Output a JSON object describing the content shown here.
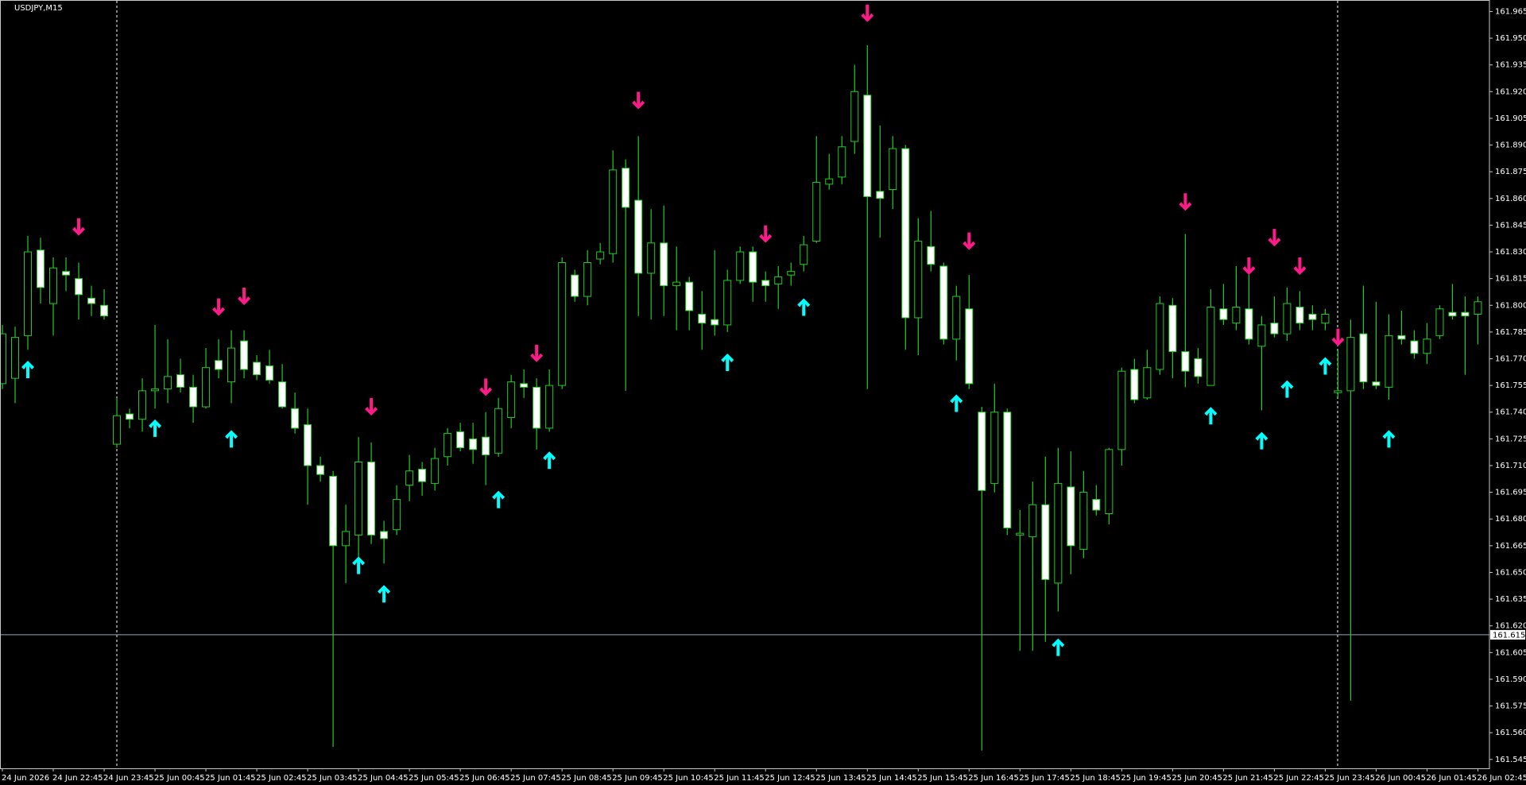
{
  "chart_data": {
    "type": "candlestick",
    "title": "USDJPY,M15",
    "categories": [
      "24 Jun 2026",
      null,
      null,
      null,
      "24 Jun 22:45",
      null,
      null,
      null,
      "24 Jun 23:45",
      null,
      null,
      null,
      "25 Jun 00:45",
      null,
      null,
      null,
      "25 Jun 01:45",
      null,
      null,
      null,
      "25 Jun 02:45",
      null,
      null,
      null,
      "25 Jun 03:45",
      null,
      null,
      null,
      "25 Jun 04:45",
      null,
      null,
      null,
      "25 Jun 05:45",
      null,
      null,
      null,
      "25 Jun 06:45",
      null,
      null,
      null,
      "25 Jun 07:45",
      null,
      null,
      null,
      "25 Jun 08:45",
      null,
      null,
      null,
      "25 Jun 09:45",
      null,
      null,
      null,
      "25 Jun 10:45",
      null,
      null,
      null,
      "25 Jun 11:45",
      null,
      null,
      null,
      "25 Jun 12:45",
      null,
      null,
      null,
      "25 Jun 13:45",
      null,
      null,
      null,
      "25 Jun 14:45",
      null,
      null,
      null,
      "25 Jun 15:45",
      null,
      null,
      null,
      "25 Jun 16:45",
      null,
      null,
      null,
      "25 Jun 17:45",
      null,
      null,
      null,
      "25 Jun 18:45",
      null,
      null,
      null,
      "25 Jun 19:45",
      null,
      null,
      null,
      "25 Jun 20:45",
      null,
      null,
      null,
      "25 Jun 21:45",
      null,
      null,
      null,
      "25 Jun 22:45",
      null,
      null,
      null,
      "25 Jun 23:45",
      null,
      null,
      null,
      "26 Jun 00:45",
      null,
      null,
      null,
      "26 Jun 01:45",
      null,
      null,
      null,
      "26 Jun 02:45"
    ],
    "open": [
      161.756,
      161.759,
      161.783,
      161.831,
      161.801,
      161.819,
      161.815,
      161.804,
      161.8,
      161.722,
      161.739,
      161.736,
      161.752,
      161.753,
      161.761,
      161.754,
      161.743,
      161.769,
      161.757,
      161.78,
      161.768,
      161.766,
      161.757,
      161.742,
      161.733,
      161.71,
      161.704,
      161.665,
      161.671,
      161.712,
      161.673,
      161.674,
      161.699,
      161.708,
      161.7,
      161.715,
      161.729,
      161.725,
      161.726,
      161.717,
      161.737,
      161.756,
      161.754,
      161.731,
      161.755,
      161.817,
      161.805,
      161.826,
      161.829,
      161.877,
      161.859,
      161.818,
      161.835,
      161.811,
      161.813,
      161.795,
      161.792,
      161.789,
      161.814,
      161.83,
      161.814,
      161.812,
      161.817,
      161.823,
      161.836,
      161.868,
      161.872,
      161.892,
      161.918,
      161.864,
      161.865,
      161.888,
      161.793,
      161.833,
      161.822,
      161.781,
      161.798,
      161.74,
      161.7,
      161.74,
      161.671,
      161.67,
      161.688,
      161.644,
      161.698,
      161.663,
      161.691,
      161.683,
      161.719,
      161.764,
      161.748,
      161.764,
      161.8,
      161.774,
      161.77,
      161.755,
      161.798,
      161.79,
      161.798,
      161.777,
      161.79,
      161.784,
      161.799,
      161.795,
      161.79,
      161.751,
      161.752,
      161.784,
      161.757,
      161.754,
      161.783,
      161.78,
      161.773,
      161.783,
      161.796,
      161.796,
      161.795
    ],
    "high": [
      161.789,
      161.788,
      161.839,
      161.838,
      161.827,
      161.827,
      161.824,
      161.811,
      161.809,
      161.748,
      161.742,
      161.759,
      161.789,
      161.781,
      161.77,
      161.761,
      161.776,
      161.781,
      161.786,
      161.786,
      161.772,
      161.775,
      161.767,
      161.751,
      161.742,
      161.715,
      161.707,
      161.688,
      161.726,
      161.723,
      161.679,
      161.699,
      161.716,
      161.712,
      161.72,
      161.731,
      161.734,
      161.734,
      161.74,
      161.748,
      161.761,
      161.764,
      161.759,
      161.764,
      161.827,
      161.82,
      161.831,
      161.835,
      161.887,
      161.882,
      161.895,
      161.854,
      161.856,
      161.833,
      161.816,
      161.808,
      161.831,
      161.82,
      161.833,
      161.833,
      161.819,
      161.822,
      161.824,
      161.839,
      161.895,
      161.885,
      161.895,
      161.935,
      161.946,
      161.901,
      161.895,
      161.89,
      161.849,
      161.853,
      161.824,
      161.811,
      161.817,
      161.743,
      161.756,
      161.742,
      161.685,
      161.701,
      161.715,
      161.72,
      161.718,
      161.707,
      161.699,
      161.72,
      161.765,
      161.77,
      161.775,
      161.805,
      161.804,
      161.84,
      161.776,
      161.809,
      161.812,
      161.822,
      161.819,
      161.794,
      161.805,
      161.81,
      161.808,
      161.8,
      161.798,
      161.775,
      161.792,
      161.811,
      161.802,
      161.795,
      161.797,
      161.786,
      161.79,
      161.8,
      161.812,
      161.805,
      161.805
    ],
    "low": [
      161.753,
      161.745,
      161.775,
      161.801,
      161.783,
      161.808,
      161.792,
      161.794,
      161.792,
      161.72,
      161.731,
      161.729,
      161.742,
      161.745,
      161.751,
      161.734,
      161.742,
      161.759,
      161.745,
      161.759,
      161.758,
      161.756,
      161.742,
      161.728,
      161.688,
      161.701,
      161.552,
      161.644,
      161.655,
      161.666,
      161.655,
      161.671,
      161.69,
      161.693,
      161.696,
      161.71,
      161.718,
      161.711,
      161.699,
      161.715,
      161.731,
      161.748,
      161.719,
      161.729,
      161.753,
      161.802,
      161.8,
      161.823,
      161.824,
      161.752,
      161.794,
      161.792,
      161.794,
      161.786,
      161.786,
      161.775,
      161.783,
      161.785,
      161.812,
      161.802,
      161.802,
      161.798,
      161.811,
      161.819,
      161.835,
      161.865,
      161.868,
      161.885,
      161.753,
      161.838,
      161.854,
      161.775,
      161.772,
      161.819,
      161.778,
      161.769,
      161.753,
      161.55,
      161.695,
      161.671,
      161.606,
      161.606,
      161.611,
      161.628,
      161.649,
      161.658,
      161.682,
      161.677,
      161.71,
      161.745,
      161.747,
      161.761,
      161.759,
      161.754,
      161.756,
      161.755,
      161.789,
      161.786,
      161.778,
      161.741,
      161.782,
      161.78,
      161.786,
      161.786,
      161.786,
      161.748,
      161.578,
      161.753,
      161.753,
      161.747,
      161.778,
      161.77,
      161.767,
      161.781,
      161.792,
      161.761,
      161.778
    ],
    "close": [
      161.784,
      161.782,
      161.83,
      161.81,
      161.821,
      161.817,
      161.806,
      161.801,
      161.794,
      161.738,
      161.736,
      161.752,
      161.753,
      161.76,
      161.754,
      161.743,
      161.765,
      161.764,
      161.776,
      161.764,
      161.761,
      161.758,
      161.743,
      161.731,
      161.71,
      161.705,
      161.665,
      161.673,
      161.712,
      161.671,
      161.669,
      161.691,
      161.707,
      161.701,
      161.714,
      161.728,
      161.72,
      161.719,
      161.716,
      161.742,
      161.757,
      161.754,
      161.731,
      161.755,
      161.824,
      161.805,
      161.824,
      161.83,
      161.876,
      161.855,
      161.818,
      161.835,
      161.811,
      161.813,
      161.797,
      161.79,
      161.789,
      161.814,
      161.83,
      161.813,
      161.811,
      161.816,
      161.819,
      161.834,
      161.869,
      161.871,
      161.889,
      161.92,
      161.861,
      161.86,
      161.888,
      161.793,
      161.836,
      161.823,
      161.781,
      161.805,
      161.756,
      161.696,
      161.74,
      161.675,
      161.672,
      161.688,
      161.646,
      161.7,
      161.665,
      161.695,
      161.685,
      161.719,
      161.763,
      161.747,
      161.765,
      161.801,
      161.774,
      161.763,
      161.76,
      161.799,
      161.792,
      161.799,
      161.781,
      161.789,
      161.784,
      161.801,
      161.79,
      161.792,
      161.795,
      161.752,
      161.782,
      161.757,
      161.755,
      161.783,
      161.781,
      161.773,
      161.781,
      161.798,
      161.794,
      161.794,
      161.802
    ],
    "down_arrows": {
      "color": "#ff1a8c",
      "values": [
        null,
        null,
        null,
        null,
        null,
        null,
        161.844,
        null,
        null,
        null,
        null,
        null,
        null,
        null,
        null,
        null,
        null,
        161.799,
        null,
        161.805,
        null,
        null,
        null,
        null,
        null,
        null,
        null,
        null,
        null,
        161.743,
        null,
        null,
        null,
        null,
        null,
        null,
        null,
        null,
        161.754,
        null,
        null,
        null,
        161.773,
        null,
        null,
        null,
        null,
        null,
        null,
        null,
        161.915,
        null,
        null,
        null,
        null,
        null,
        null,
        null,
        null,
        null,
        161.84,
        null,
        null,
        null,
        null,
        null,
        null,
        null,
        161.964,
        null,
        null,
        null,
        null,
        null,
        null,
        null,
        161.836,
        null,
        null,
        null,
        null,
        null,
        null,
        null,
        null,
        null,
        null,
        null,
        null,
        null,
        null,
        null,
        null,
        161.858,
        null,
        null,
        null,
        null,
        161.822,
        null,
        161.838,
        null,
        161.822,
        null,
        null,
        161.782,
        null,
        null,
        null,
        null,
        null,
        null,
        null,
        null,
        null,
        null,
        null
      ]
    },
    "up_arrows": {
      "color": "#00ffff",
      "values": [
        null,
        null,
        161.764,
        null,
        null,
        null,
        null,
        null,
        null,
        null,
        null,
        null,
        161.731,
        null,
        null,
        null,
        null,
        null,
        161.725,
        null,
        null,
        null,
        null,
        null,
        null,
        null,
        null,
        null,
        161.654,
        null,
        161.638,
        null,
        null,
        null,
        null,
        null,
        null,
        null,
        null,
        161.691,
        null,
        null,
        null,
        161.713,
        null,
        null,
        null,
        null,
        null,
        null,
        null,
        null,
        null,
        null,
        null,
        null,
        null,
        161.768,
        null,
        null,
        null,
        null,
        null,
        161.799,
        null,
        null,
        null,
        null,
        null,
        null,
        null,
        null,
        null,
        null,
        null,
        161.745,
        null,
        null,
        null,
        null,
        null,
        null,
        null,
        161.608,
        null,
        null,
        null,
        null,
        null,
        null,
        null,
        null,
        null,
        null,
        null,
        161.738,
        null,
        null,
        null,
        161.724,
        null,
        161.753,
        null,
        null,
        161.766,
        null,
        null,
        null,
        null,
        161.725,
        null,
        null,
        null,
        null,
        null,
        null,
        null
      ]
    },
    "current_price": 161.615,
    "ylim": [
      161.54,
      161.971
    ],
    "yticks": [
      161.545,
      {
        "value": 161.56,
        "label": "161.560"
      },
      161.575,
      {
        "value": 161.59,
        "label": "161.590"
      },
      161.605,
      {
        "value": 161.62,
        "label": "161.620"
      },
      161.635,
      {
        "value": 161.65,
        "label": "161.650"
      },
      161.665,
      {
        "value": 161.68,
        "label": "161.680"
      },
      161.695,
      {
        "value": 161.71,
        "label": "161.710"
      },
      161.725,
      {
        "value": 161.74,
        "label": "161.740"
      },
      161.755,
      {
        "value": 161.77,
        "label": "161.770"
      },
      161.785,
      {
        "value": 161.8,
        "label": "161.800"
      },
      161.815,
      {
        "value": 161.83,
        "label": "161.830"
      },
      161.845,
      {
        "value": 161.86,
        "label": "161.860"
      },
      161.875,
      {
        "value": 161.89,
        "label": "161.890"
      },
      161.905,
      {
        "value": 161.92,
        "label": "161.920"
      },
      161.935,
      {
        "value": 161.95,
        "label": "161.950"
      },
      161.965
    ],
    "grid": false,
    "colors": {
      "wick": "#22cc22",
      "bull_body": "#000000",
      "bear_body": "#ffffff",
      "current_price_line": "#9aa8b4",
      "current_price_box": "#ffffff"
    }
  }
}
